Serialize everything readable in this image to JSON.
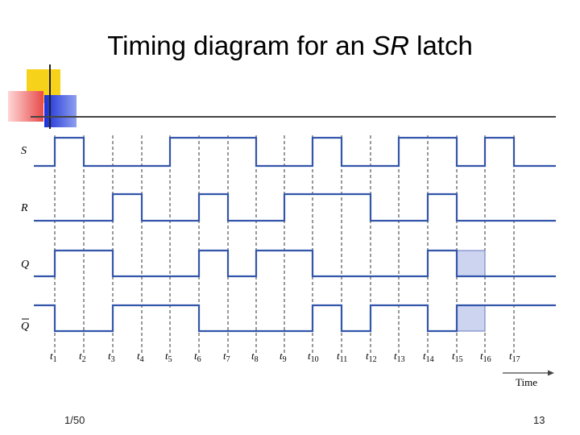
{
  "slide": {
    "title_prefix": "Timing diagram for an ",
    "title_italic": "SR",
    "title_suffix": " latch",
    "footer_left": "1/50",
    "footer_right": "13"
  },
  "diagram": {
    "signals": [
      {
        "label": "S",
        "overbar": false
      },
      {
        "label": "R",
        "overbar": false
      },
      {
        "label": "Q",
        "overbar": false
      },
      {
        "label": "Q",
        "overbar": true
      }
    ],
    "time_labels": [
      "1",
      "2",
      "3",
      "4",
      "5",
      "6",
      "7",
      "8",
      "9",
      "10",
      "11",
      "12",
      "13",
      "14",
      "15",
      "16",
      "17"
    ],
    "time_prefix": "t",
    "axis_label": "Time",
    "colors": {
      "wave": "#3355aa",
      "highlight_fill": "#ccd4f0",
      "highlight_stroke": "#6677bb",
      "dash": "#333333",
      "accent_blue": "#1a2fd8",
      "accent_yellow": "#f7d21a",
      "accent_red": "#e84a4a"
    }
  }
}
